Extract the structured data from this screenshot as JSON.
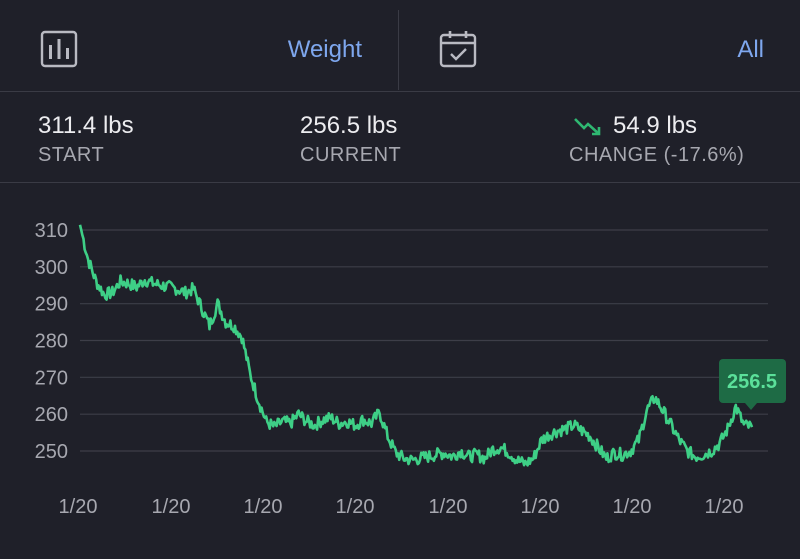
{
  "header": {
    "metric_label": "Weight",
    "metric_icon": "bar-chart-icon",
    "range_label": "All",
    "range_icon": "calendar-check-icon"
  },
  "stats": {
    "start_value": "311.4 lbs",
    "start_label": "START",
    "current_value": "256.5 lbs",
    "current_label": "CURRENT",
    "change_value": "54.9 lbs",
    "change_label": "CHANGE (-17.6%)",
    "change_icon": "trend-down-icon",
    "change_color": "#2fb872"
  },
  "chart_data": {
    "type": "line",
    "ylim": [
      244,
      312
    ],
    "yticks": [
      "310",
      "300",
      "290",
      "280",
      "270",
      "260",
      "250"
    ],
    "xticks": [
      "1/20",
      "1/20",
      "1/20",
      "1/20",
      "1/20",
      "1/20",
      "1/20",
      "1/20"
    ],
    "line_color": "#3ecf86",
    "tooltip_label": "256.5",
    "series": [
      {
        "values": [
          311.4,
          302,
          296,
          292.5,
          293,
          296,
          295.5,
          294.5,
          296.5,
          295.5,
          295,
          294.5,
          294,
          293,
          294,
          289,
          284,
          290,
          285,
          284,
          281,
          271,
          264,
          258,
          256.5,
          258,
          257.5,
          260,
          258,
          257,
          258.5,
          259,
          257.5,
          258,
          257,
          258.5,
          257.5,
          260.5,
          254,
          249.5,
          248,
          247.5,
          248,
          248.5,
          249,
          249.5,
          248.5,
          250,
          248.5,
          249,
          248,
          250.5,
          251,
          249.5,
          247.5,
          246.5,
          248,
          253,
          254.5,
          255.5,
          256,
          257,
          255.5,
          254,
          251,
          248,
          249.5,
          249,
          250,
          253,
          261,
          264.5,
          261,
          257,
          253,
          250,
          248.5,
          249,
          250,
          252,
          256,
          262,
          257,
          256.5
        ]
      }
    ]
  }
}
